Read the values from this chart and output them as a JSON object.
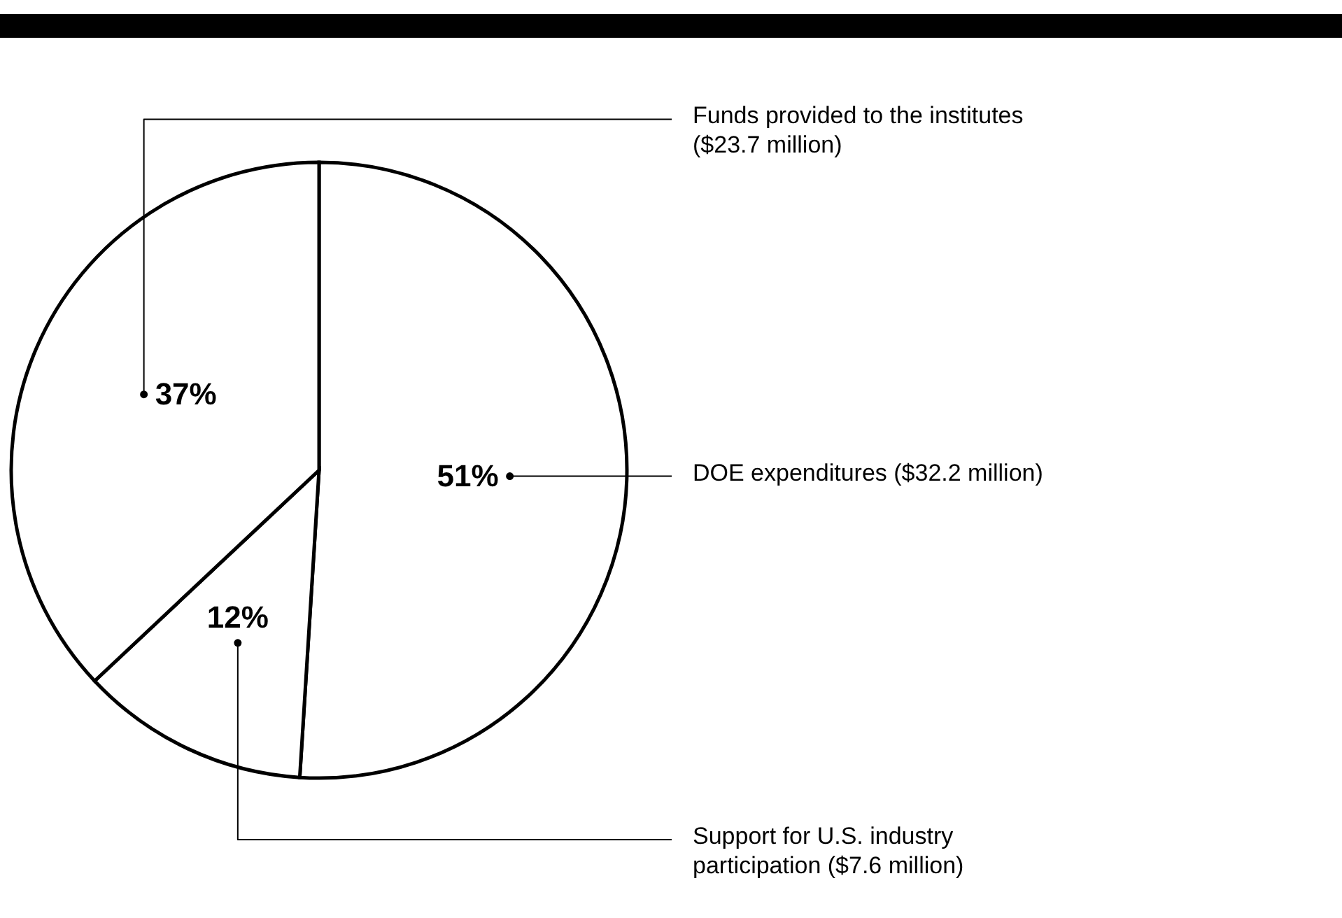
{
  "chart_data": {
    "type": "pie",
    "categories": [
      "DOE expenditures ($32.2 million)",
      "Support for U.S. industry participation ($7.6 million)",
      "Funds provided to the institutes ($23.7 million)"
    ],
    "values": [
      51,
      12,
      37
    ],
    "value_labels": [
      "51%",
      "12%",
      "37%"
    ],
    "colors": [
      "#ffffff",
      "#ffffff",
      "#ffffff"
    ]
  }
}
